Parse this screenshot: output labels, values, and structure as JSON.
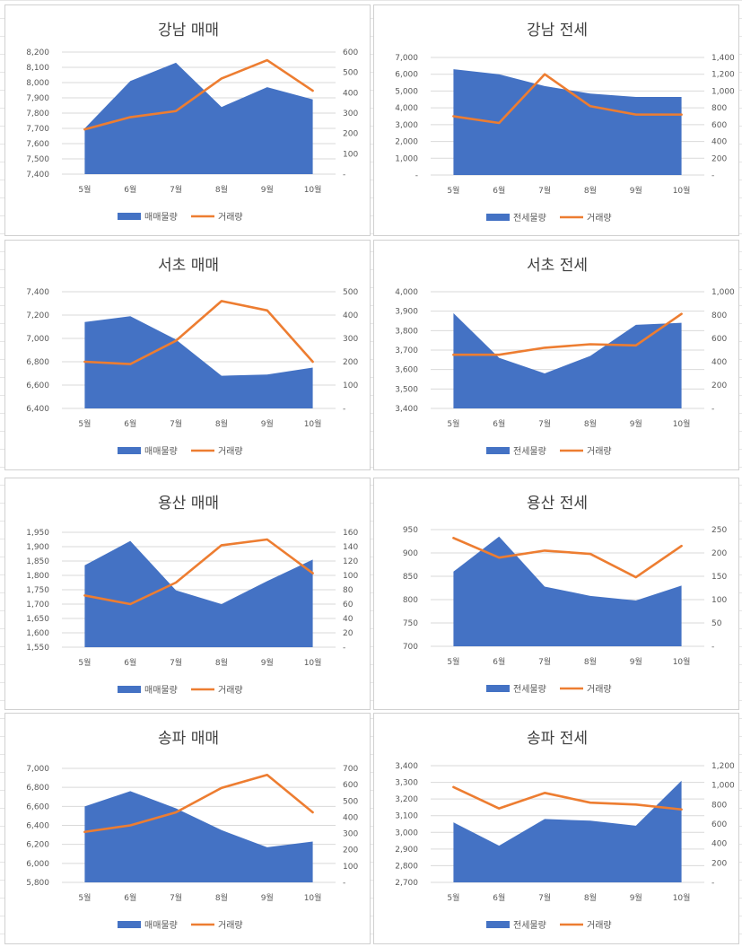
{
  "colors": {
    "area": "#4472c4",
    "line": "#ed7d31",
    "grid": "#d9d9d9",
    "text": "#595959"
  },
  "chart_data": [
    {
      "type": "area",
      "title": "강남 매매",
      "categories": [
        "5월",
        "6월",
        "7월",
        "8월",
        "9월",
        "10월"
      ],
      "series": [
        {
          "name": "매매물량",
          "axis": "left",
          "kind": "area",
          "values": [
            7700,
            8010,
            8130,
            7840,
            7970,
            7890
          ]
        },
        {
          "name": "거래량",
          "axis": "right",
          "kind": "line",
          "values": [
            220,
            280,
            310,
            470,
            560,
            410
          ]
        }
      ],
      "ylim_left": [
        7400,
        8200
      ],
      "yticks_left": [
        "7,400",
        "7,500",
        "7,600",
        "7,700",
        "7,800",
        "7,900",
        "8,000",
        "8,100",
        "8,200"
      ],
      "ylim_right": [
        0,
        600
      ],
      "yticks_right": [
        "-",
        "100",
        "200",
        "300",
        "400",
        "500",
        "600"
      ],
      "grid": true,
      "legend": "bottom"
    },
    {
      "type": "area",
      "title": "강남 전세",
      "categories": [
        "5월",
        "6월",
        "7월",
        "8월",
        "9월",
        "10월"
      ],
      "series": [
        {
          "name": "전세물량",
          "axis": "left",
          "kind": "area",
          "values": [
            6300,
            6000,
            5300,
            4850,
            4650,
            4650
          ]
        },
        {
          "name": "거래량",
          "axis": "right",
          "kind": "line",
          "values": [
            700,
            620,
            1200,
            820,
            720,
            720
          ]
        }
      ],
      "ylim_left": [
        0,
        7000
      ],
      "yticks_left": [
        "-",
        "1,000",
        "2,000",
        "3,000",
        "4,000",
        "5,000",
        "6,000",
        "7,000"
      ],
      "ylim_right": [
        0,
        1400
      ],
      "yticks_right": [
        "-",
        "200",
        "400",
        "600",
        "800",
        "1,000",
        "1,200",
        "1,400"
      ],
      "grid": true,
      "legend": "bottom"
    },
    {
      "type": "area",
      "title": "서초 매매",
      "categories": [
        "5월",
        "6월",
        "7월",
        "8월",
        "9월",
        "10월"
      ],
      "series": [
        {
          "name": "매매물량",
          "axis": "left",
          "kind": "area",
          "values": [
            7140,
            7190,
            6990,
            6680,
            6690,
            6750
          ]
        },
        {
          "name": "거래량",
          "axis": "right",
          "kind": "line",
          "values": [
            200,
            190,
            290,
            460,
            420,
            200
          ]
        }
      ],
      "ylim_left": [
        6400,
        7400
      ],
      "yticks_left": [
        "6,400",
        "6,600",
        "6,800",
        "7,000",
        "7,200",
        "7,400"
      ],
      "ylim_right": [
        0,
        500
      ],
      "yticks_right": [
        "-",
        "100",
        "200",
        "300",
        "400",
        "500"
      ],
      "grid": true,
      "legend": "bottom"
    },
    {
      "type": "area",
      "title": "서초 전세",
      "categories": [
        "5월",
        "6월",
        "7월",
        "8월",
        "9월",
        "10월"
      ],
      "series": [
        {
          "name": "전세물량",
          "axis": "left",
          "kind": "area",
          "values": [
            3890,
            3660,
            3580,
            3670,
            3830,
            3840
          ]
        },
        {
          "name": "거래량",
          "axis": "right",
          "kind": "line",
          "values": [
            460,
            460,
            520,
            550,
            540,
            810
          ]
        }
      ],
      "ylim_left": [
        3400,
        4000
      ],
      "yticks_left": [
        "3,400",
        "3,500",
        "3,600",
        "3,700",
        "3,800",
        "3,900",
        "4,000"
      ],
      "ylim_right": [
        0,
        1000
      ],
      "yticks_right": [
        "-",
        "200",
        "400",
        "600",
        "800",
        "1,000"
      ],
      "grid": true,
      "legend": "bottom"
    },
    {
      "type": "area",
      "title": "용산 매매",
      "categories": [
        "5월",
        "6월",
        "7월",
        "8월",
        "9월",
        "10월"
      ],
      "series": [
        {
          "name": "매매물량",
          "axis": "left",
          "kind": "area",
          "values": [
            1835,
            1920,
            1748,
            1700,
            1780,
            1855
          ]
        },
        {
          "name": "거래량",
          "axis": "right",
          "kind": "line",
          "values": [
            72,
            60,
            90,
            142,
            150,
            103
          ]
        }
      ],
      "ylim_left": [
        1550,
        1950
      ],
      "yticks_left": [
        "1,550",
        "1,600",
        "1,650",
        "1,700",
        "1,750",
        "1,800",
        "1,850",
        "1,900",
        "1,950"
      ],
      "ylim_right": [
        0,
        160
      ],
      "yticks_right": [
        "-",
        "20",
        "40",
        "60",
        "80",
        "100",
        "120",
        "140",
        "160"
      ],
      "grid": true,
      "legend": "bottom"
    },
    {
      "type": "area",
      "title": "용산 전세",
      "categories": [
        "5월",
        "6월",
        "7월",
        "8월",
        "9월",
        "10월"
      ],
      "series": [
        {
          "name": "전세물량",
          "axis": "left",
          "kind": "area",
          "values": [
            860,
            935,
            828,
            808,
            798,
            830
          ]
        },
        {
          "name": "거래량",
          "axis": "right",
          "kind": "line",
          "values": [
            232,
            190,
            205,
            198,
            148,
            215
          ]
        }
      ],
      "ylim_left": [
        700,
        950
      ],
      "yticks_left": [
        "700",
        "750",
        "800",
        "850",
        "900",
        "950"
      ],
      "ylim_right": [
        0,
        250
      ],
      "yticks_right": [
        "-",
        "50",
        "100",
        "150",
        "200",
        "250"
      ],
      "grid": true,
      "legend": "bottom"
    },
    {
      "type": "area",
      "title": "송파 매매",
      "categories": [
        "5월",
        "6월",
        "7월",
        "8월",
        "9월",
        "10월"
      ],
      "series": [
        {
          "name": "매매물량",
          "axis": "left",
          "kind": "area",
          "values": [
            6600,
            6760,
            6580,
            6350,
            6170,
            6230
          ]
        },
        {
          "name": "거래량",
          "axis": "right",
          "kind": "line",
          "values": [
            310,
            350,
            430,
            580,
            660,
            430
          ]
        }
      ],
      "ylim_left": [
        5800,
        7000
      ],
      "yticks_left": [
        "5,800",
        "6,000",
        "6,200",
        "6,400",
        "6,600",
        "6,800",
        "7,000"
      ],
      "ylim_right": [
        0,
        700
      ],
      "yticks_right": [
        "-",
        "100",
        "200",
        "300",
        "400",
        "500",
        "600",
        "700"
      ],
      "grid": true,
      "legend": "bottom"
    },
    {
      "type": "area",
      "title": "송파 전세",
      "categories": [
        "5월",
        "6월",
        "7월",
        "8월",
        "9월",
        "10월"
      ],
      "series": [
        {
          "name": "전세물량",
          "axis": "left",
          "kind": "area",
          "values": [
            3060,
            2920,
            3080,
            3070,
            3040,
            3310
          ]
        },
        {
          "name": "거래량",
          "axis": "right",
          "kind": "line",
          "values": [
            980,
            760,
            920,
            820,
            800,
            750
          ]
        }
      ],
      "ylim_left": [
        2700,
        3400
      ],
      "yticks_left": [
        "2,700",
        "2,800",
        "2,900",
        "3,000",
        "3,100",
        "3,200",
        "3,300",
        "3,400"
      ],
      "ylim_right": [
        0,
        1200
      ],
      "yticks_right": [
        "-",
        "200",
        "400",
        "600",
        "800",
        "1,000",
        "1,200"
      ],
      "grid": true,
      "legend": "bottom"
    }
  ]
}
